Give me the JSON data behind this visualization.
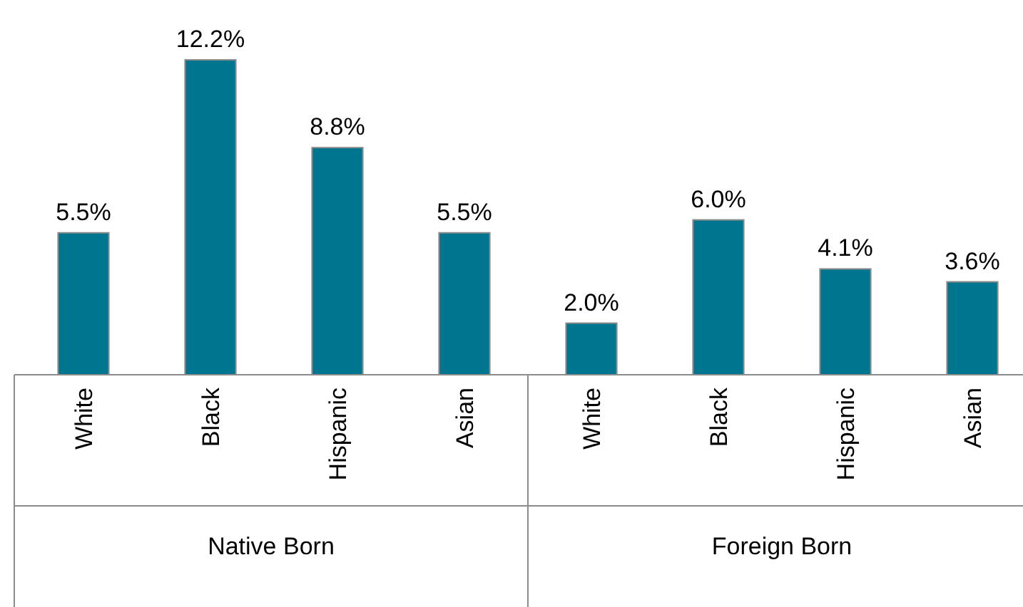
{
  "chart_data": {
    "type": "bar",
    "categories": [
      "White",
      "Black",
      "Hispanic",
      "Asian",
      "White",
      "Black",
      "Hispanic",
      "Asian"
    ],
    "values": [
      5.5,
      12.2,
      8.8,
      5.5,
      2.0,
      6.0,
      4.1,
      3.6
    ],
    "value_labels": [
      "5.5%",
      "12.2%",
      "8.8%",
      "5.5%",
      "2.0%",
      "6.0%",
      "4.1%",
      "3.6%"
    ],
    "color": "#00758f",
    "annotations": [
      "Native Born",
      "Foreign Born"
    ]
  }
}
